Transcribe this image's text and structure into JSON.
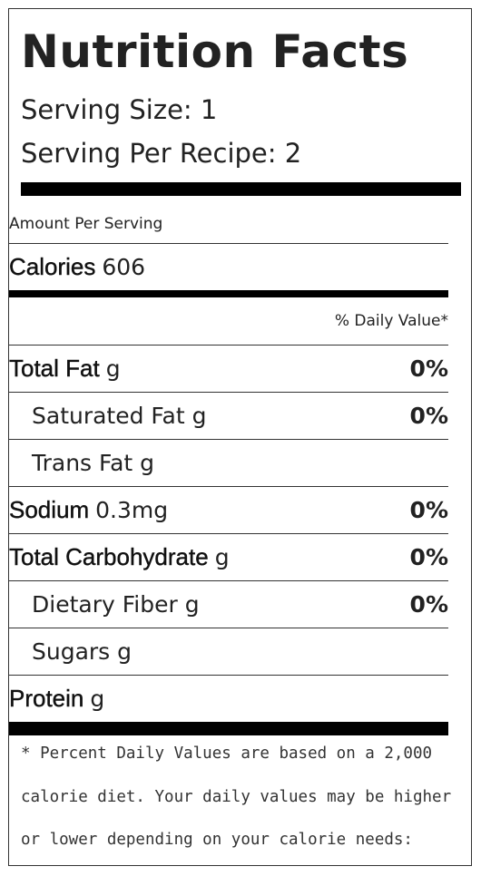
{
  "label": {
    "title": "Nutrition Facts",
    "serving_size": "Serving Size: 1",
    "serving_per_recipe": "Serving Per Recipe: 2",
    "amount_per_serving": "Amount Per Serving",
    "calories_label": "Calories",
    "calories_value": "606",
    "daily_value_header": "% Daily Value*",
    "nutrients": [
      {
        "name": "Total Fat",
        "amount": "g",
        "percent": "0%"
      },
      {
        "name": "Saturated Fat",
        "amount": "g",
        "percent": "0%"
      },
      {
        "name": "Trans Fat",
        "amount": "g",
        "percent": ""
      },
      {
        "name": "Sodium",
        "amount": "0.3mg",
        "percent": "0%"
      },
      {
        "name": "Total Carbohydrate",
        "amount": "g",
        "percent": "0%"
      },
      {
        "name": "Dietary Fiber",
        "amount": "g",
        "percent": "0%"
      },
      {
        "name": "Sugars",
        "amount": "g",
        "percent": ""
      },
      {
        "name": "Protein",
        "amount": "g",
        "percent": ""
      }
    ],
    "footnote": "* Percent Daily Values are based on a 2,000 calorie diet. Your daily values may be higher or lower depending on your calorie needs:"
  }
}
